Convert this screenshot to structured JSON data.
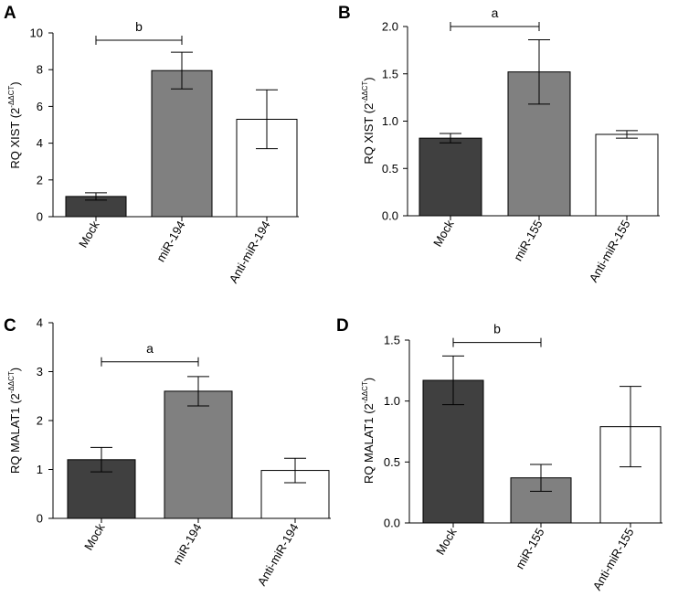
{
  "chart_data": [
    {
      "panel": "A",
      "type": "bar",
      "categories": [
        "Mock",
        "miR-194",
        "Anti-miR-194"
      ],
      "values": [
        1.1,
        7.95,
        5.3
      ],
      "errors": [
        0.2,
        1.0,
        1.6
      ],
      "colors": [
        "#404040",
        "#808080",
        "#ffffff"
      ],
      "ylabel_main": "RQ XIST (2",
      "ylabel_sup": "-ΔΔCT",
      "ylabel_end": ")",
      "ylim": [
        0,
        10
      ],
      "yticks": [
        0,
        2,
        4,
        6,
        8,
        10
      ],
      "ytick_labels": [
        "0",
        "2",
        "4",
        "6",
        "8",
        "10"
      ],
      "significance": {
        "from": 0,
        "to": 1,
        "label": "b",
        "level": 9.6
      }
    },
    {
      "panel": "B",
      "type": "bar",
      "categories": [
        "Mock",
        "miR-155",
        "Anti-miR-155"
      ],
      "values": [
        0.82,
        1.52,
        0.86
      ],
      "errors": [
        0.05,
        0.34,
        0.04
      ],
      "colors": [
        "#404040",
        "#808080",
        "#ffffff"
      ],
      "ylabel_main": "RQ XIST (2",
      "ylabel_sup": "-ΔΔCT",
      "ylabel_end": ")",
      "ylim": [
        0,
        2.0
      ],
      "yticks": [
        0,
        0.5,
        1.0,
        1.5,
        2.0
      ],
      "ytick_labels": [
        "0.0",
        "0.5",
        "1.0",
        "1.5",
        "2.0"
      ],
      "significance": {
        "from": 0,
        "to": 1,
        "label": "a",
        "level": 2.0
      }
    },
    {
      "panel": "C",
      "type": "bar",
      "categories": [
        "Mock",
        "miR-194",
        "Anti-miR-194"
      ],
      "values": [
        1.2,
        2.6,
        0.98
      ],
      "errors": [
        0.25,
        0.3,
        0.25
      ],
      "colors": [
        "#404040",
        "#808080",
        "#ffffff"
      ],
      "ylabel_main": "RQ MALAT1 (2",
      "ylabel_sup": "-ΔΔCT",
      "ylabel_end": ")",
      "ylim": [
        0,
        4
      ],
      "yticks": [
        0,
        1,
        2,
        3,
        4
      ],
      "ytick_labels": [
        "0",
        "1",
        "2",
        "3",
        "4"
      ],
      "significance": {
        "from": 0,
        "to": 1,
        "label": "a",
        "level": 3.2
      }
    },
    {
      "panel": "D",
      "type": "bar",
      "categories": [
        "Mock",
        "miR-155",
        "Anti-miR-155"
      ],
      "values": [
        1.17,
        0.37,
        0.79
      ],
      "errors": [
        0.2,
        0.11,
        0.33
      ],
      "colors": [
        "#404040",
        "#808080",
        "#ffffff"
      ],
      "ylabel_main": "RQ MALAT1 (2",
      "ylabel_sup": "-ΔΔCT",
      "ylabel_end": ")",
      "ylim": [
        0,
        1.5
      ],
      "yticks": [
        0,
        0.5,
        1.0,
        1.5
      ],
      "ytick_labels": [
        "0.0",
        "0.5",
        "1.0",
        "1.5"
      ],
      "significance": {
        "from": 0,
        "to": 1,
        "label": "b",
        "level": 1.48
      }
    }
  ]
}
